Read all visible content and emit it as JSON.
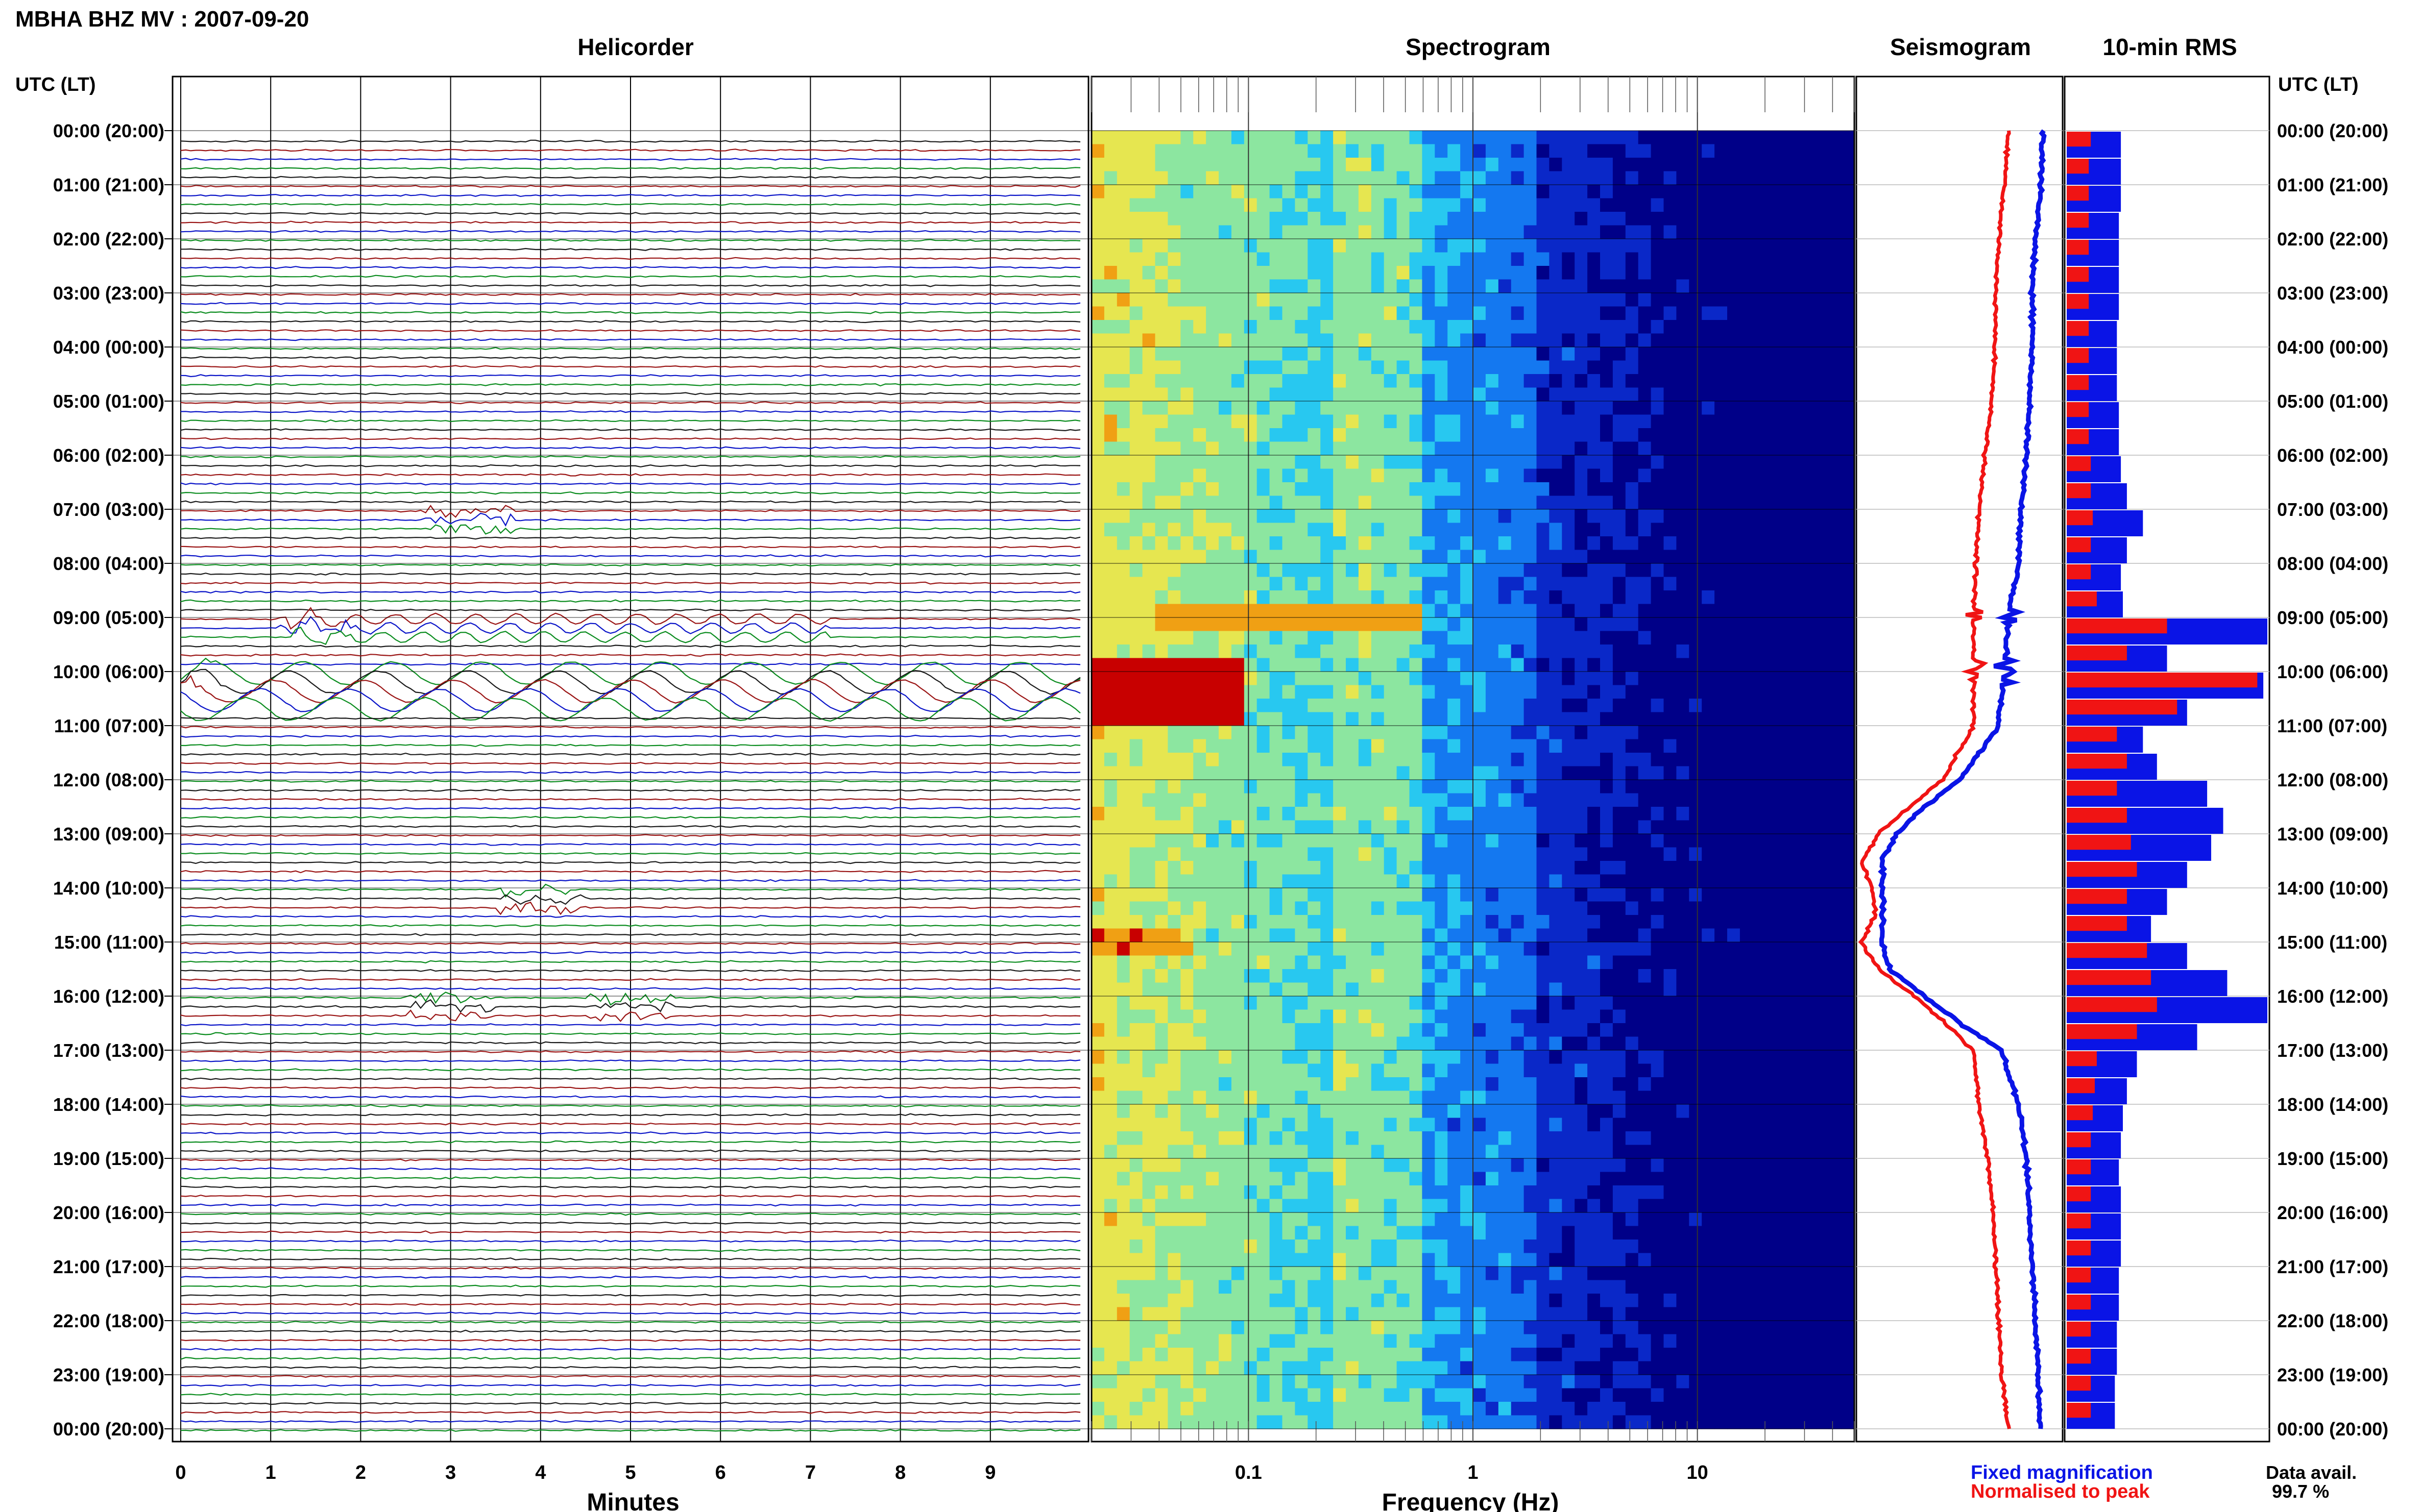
{
  "header": {
    "station_title": "MBHA BHZ MV : 2007-09-20"
  },
  "panels": {
    "helicorder_title": "Helicorder",
    "spectrogram_title": "Spectrogram",
    "seismogram_title": "Seismogram",
    "rms_title": "10-min RMS"
  },
  "axes": {
    "time_label_left": "UTC (LT)",
    "time_label_right": "UTC (LT)",
    "helicorder_xlabel": "Minutes",
    "spectrogram_xlabel": "Frequency (Hz)",
    "helicorder_ticks": [
      "0",
      "1",
      "2",
      "3",
      "4",
      "5",
      "6",
      "7",
      "8",
      "9"
    ],
    "spectrogram_ticks": [
      "0.1",
      "1",
      "10"
    ],
    "hour_labels": [
      "00:00 (20:00)",
      "01:00 (21:00)",
      "02:00 (22:00)",
      "03:00 (23:00)",
      "04:00 (00:00)",
      "05:00 (01:00)",
      "06:00 (02:00)",
      "07:00 (03:00)",
      "08:00 (04:00)",
      "09:00 (05:00)",
      "10:00 (06:00)",
      "11:00 (07:00)",
      "12:00 (08:00)",
      "13:00 (09:00)",
      "14:00 (10:00)",
      "15:00 (11:00)",
      "16:00 (12:00)",
      "17:00 (13:00)",
      "18:00 (14:00)",
      "19:00 (15:00)",
      "20:00 (16:00)",
      "21:00 (17:00)",
      "22:00 (18:00)",
      "23:00 (19:00)",
      "00:00 (20:00)"
    ]
  },
  "legend": {
    "fixed_label": "Fixed magnification",
    "normalised_label": "Normalised to peak",
    "data_avail_label": "Data avail.",
    "data_avail_value": "99.7 %"
  },
  "colors": {
    "fixed": "#0a14e6",
    "normalised": "#f01414",
    "trace_colors": [
      "#1a1a1a",
      "#9a1414",
      "#0a14c8",
      "#0a8c1e"
    ],
    "spectrogram_palette": [
      "#000088",
      "#0a28c8",
      "#1478f0",
      "#28c8f0",
      "#8ce6a0",
      "#e6e650",
      "#f0a014",
      "#c80000"
    ]
  },
  "chart_data": [
    {
      "type": "heatmap",
      "name": "Helicorder",
      "x": {
        "label": "Minutes",
        "range": [
          0,
          10
        ]
      },
      "y": {
        "label": "UTC (LT)",
        "range_hours": [
          0,
          24
        ],
        "row_minutes": 10
      },
      "events": [
        {
          "time_utc": "07:00",
          "minute": 3.2,
          "amplitude": "moderate"
        },
        {
          "time_utc": "09:00",
          "minute": 1.5,
          "amplitude": "moderate"
        },
        {
          "time_utc": "10:00",
          "minute": 0,
          "amplitude": "large, long-period"
        },
        {
          "time_utc": "14:00",
          "minute": 4.0,
          "amplitude": "small"
        },
        {
          "time_utc": "16:00",
          "minute": 3.0,
          "amplitude": "small"
        },
        {
          "time_utc": "16:00",
          "minute": 5.0,
          "amplitude": "small"
        }
      ]
    },
    {
      "type": "heatmap",
      "name": "Spectrogram",
      "x": {
        "label": "Frequency (Hz)",
        "scale": "log",
        "range": [
          0.02,
          50
        ]
      },
      "y": {
        "label": "UTC (LT)",
        "range_hours": [
          0,
          24
        ]
      },
      "features": [
        {
          "time_utc": "09:50-10:50",
          "freq_hz": [
            0.02,
            0.09
          ],
          "level": "peak"
        },
        {
          "time_utc": "09:00",
          "freq_hz": [
            0.05,
            0.6
          ],
          "level": "high"
        },
        {
          "time_utc": "15:00",
          "freq_hz": [
            0.02,
            0.06
          ],
          "level": "high"
        },
        {
          "time_utc": "00:00-24:00",
          "freq_hz": [
            0.3,
            0.5
          ],
          "level": "microseism band"
        }
      ]
    },
    {
      "type": "line",
      "name": "Seismogram",
      "series": [
        {
          "name": "Fixed magnification",
          "hours": [
            0,
            1,
            2,
            3,
            4,
            5,
            6,
            7,
            8,
            9,
            10,
            11,
            12,
            12.5,
            13,
            13.5,
            14,
            14.5,
            15,
            15.5,
            16,
            16.5,
            17,
            18,
            19,
            20,
            21,
            22,
            23,
            24
          ],
          "values": [
            0.8,
            0.78,
            0.74,
            0.72,
            0.72,
            0.7,
            0.68,
            0.64,
            0.62,
            0.55,
            0.52,
            0.48,
            0.2,
            -0.05,
            -0.25,
            -0.35,
            -0.35,
            -0.35,
            -0.35,
            -0.3,
            -0.05,
            0.2,
            0.5,
            0.62,
            0.68,
            0.7,
            0.72,
            0.74,
            0.76,
            0.78
          ]
        },
        {
          "name": "Normalised to peak",
          "hours": [
            0,
            1,
            2,
            3,
            4,
            5,
            6,
            7,
            8,
            9,
            10,
            11,
            12,
            12.5,
            13,
            13.5,
            14,
            14.5,
            15,
            15.5,
            16,
            16.5,
            17,
            18,
            19,
            20,
            21,
            22,
            23,
            24
          ],
          "values": [
            0.55,
            0.52,
            0.48,
            0.46,
            0.45,
            0.43,
            0.38,
            0.34,
            0.32,
            0.3,
            0.3,
            0.3,
            0.08,
            -0.15,
            -0.38,
            -0.5,
            -0.42,
            -0.4,
            -0.5,
            -0.38,
            -0.12,
            0.1,
            0.3,
            0.34,
            0.4,
            0.44,
            0.46,
            0.48,
            0.5,
            0.55
          ]
        }
      ]
    },
    {
      "type": "bar",
      "name": "10-min RMS",
      "x_unit": "relative",
      "hours": [
        0,
        0.5,
        1,
        1.5,
        2,
        2.5,
        3,
        3.5,
        4,
        4.5,
        5,
        5.5,
        6,
        6.5,
        7,
        7.5,
        8,
        8.5,
        9,
        9.5,
        10,
        10.5,
        11,
        11.5,
        12,
        12.5,
        13,
        13.5,
        14,
        14.5,
        15,
        15.5,
        16,
        16.5,
        17,
        17.5,
        18,
        18.5,
        19,
        19.5,
        20,
        20.5,
        21,
        21.5,
        22,
        22.5,
        23,
        23.5
      ],
      "series": [
        {
          "name": "Fixed magnification",
          "values": [
            0.27,
            0.27,
            0.27,
            0.26,
            0.26,
            0.26,
            0.26,
            0.25,
            0.25,
            0.25,
            0.26,
            0.26,
            0.27,
            0.3,
            0.38,
            0.3,
            0.27,
            0.28,
            1.0,
            0.5,
            0.98,
            0.6,
            0.38,
            0.45,
            0.7,
            0.78,
            0.72,
            0.6,
            0.5,
            0.42,
            0.6,
            0.8,
            1.0,
            0.65,
            0.35,
            0.3,
            0.28,
            0.27,
            0.26,
            0.27,
            0.27,
            0.27,
            0.26,
            0.26,
            0.25,
            0.25,
            0.24,
            0.24
          ]
        },
        {
          "name": "Normalised to peak",
          "values": [
            0.12,
            0.11,
            0.11,
            0.11,
            0.11,
            0.11,
            0.11,
            0.11,
            0.11,
            0.11,
            0.11,
            0.11,
            0.12,
            0.12,
            0.13,
            0.12,
            0.12,
            0.15,
            0.5,
            0.3,
            0.95,
            0.55,
            0.25,
            0.3,
            0.25,
            0.3,
            0.32,
            0.35,
            0.3,
            0.3,
            0.4,
            0.42,
            0.45,
            0.35,
            0.15,
            0.14,
            0.13,
            0.12,
            0.12,
            0.12,
            0.12,
            0.12,
            0.12,
            0.12,
            0.12,
            0.12,
            0.12,
            0.12
          ]
        }
      ]
    }
  ]
}
